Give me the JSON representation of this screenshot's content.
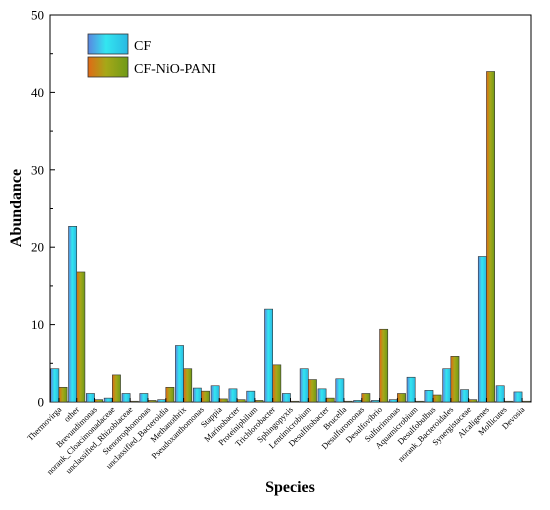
{
  "chart_data": {
    "type": "bar",
    "xlabel": "Species",
    "ylabel": "Abundance",
    "ylim": [
      0,
      50
    ],
    "yticks": [
      0,
      10,
      20,
      30,
      40,
      50
    ],
    "legend_position": "top-left",
    "categories": [
      "Thermovirga",
      "other",
      "Brevundimonas",
      "norank_Cloacimonadaceae",
      "unclassified_Rhizobiaceae",
      "Stenotrophomonas",
      "unclassified_Bacteroidia",
      "Methanothrix",
      "Pseudoxanthomonas",
      "Stappia",
      "Marinobacter",
      "Proteiniphilum",
      "Trichlorobacter",
      "Sphingopyxis",
      "Lentimicrobium",
      "Desulfitobacter",
      "Brucella",
      "Desulfuromonas",
      "Desulfovibrio",
      "Sulfurimonas",
      "Aquamicrobium",
      "Desulfobulbus",
      "norank_Bacteroidales",
      "Synergistaceae",
      "Alcaligenes",
      "Mollicutes",
      "Devosia"
    ],
    "series": [
      {
        "name": "CF",
        "color": "#39d4e6",
        "values": [
          4.3,
          22.7,
          1.1,
          0.5,
          1.1,
          1.1,
          0.3,
          7.3,
          1.8,
          2.1,
          1.7,
          1.4,
          12.0,
          1.1,
          4.3,
          1.7,
          3.0,
          0.2,
          0.2,
          0.3,
          3.2,
          1.5,
          4.3,
          1.6,
          18.8,
          2.1,
          1.3
        ]
      },
      {
        "name": "CF-NiO-PANI",
        "color": "#8fa818",
        "values": [
          1.9,
          16.8,
          0.3,
          3.5,
          0.1,
          0.2,
          1.9,
          4.3,
          1.4,
          0.4,
          0.3,
          0.2,
          4.8,
          0.1,
          2.9,
          0.5,
          0.1,
          1.1,
          9.4,
          1.1,
          0.1,
          0.9,
          5.9,
          0.3,
          42.7,
          0.1,
          0.1
        ]
      }
    ]
  }
}
